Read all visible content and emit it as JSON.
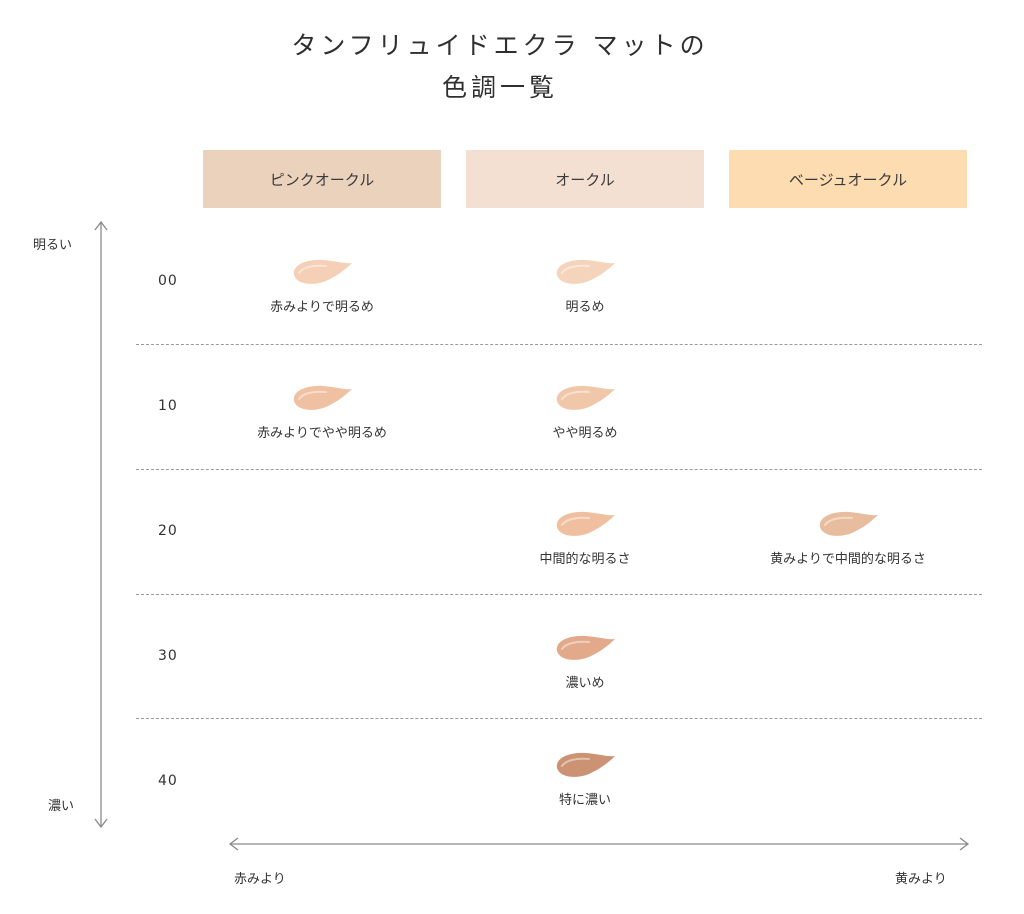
{
  "title": {
    "line1": "タンフリュイドエクラ マットの",
    "line2": "色調一覧"
  },
  "columns": [
    {
      "id": "pink",
      "label": "ピンクオークル",
      "color": "#ead2bd"
    },
    {
      "id": "ochre",
      "label": "オークル",
      "color": "#f4e0d3"
    },
    {
      "id": "beige",
      "label": "ベージュオークル",
      "color": "#fcdcb0"
    }
  ],
  "vertical_axis": {
    "top_label": "明るい",
    "bottom_label": "濃い"
  },
  "horizontal_axis": {
    "left_label": "赤みより",
    "right_label": "黄みより"
  },
  "rows": [
    {
      "number": "00",
      "cells": {
        "pink": {
          "label": "赤みよりで明るめ",
          "swatch_color": "#f5cfb6"
        },
        "ochre": {
          "label": "明るめ",
          "swatch_color": "#f5d4bc"
        }
      }
    },
    {
      "number": "10",
      "cells": {
        "pink": {
          "label": "赤みよりでやや明るめ",
          "swatch_color": "#f0c0a2"
        },
        "ochre": {
          "label": "やや明るめ",
          "swatch_color": "#f1c7aa"
        }
      }
    },
    {
      "number": "20",
      "cells": {
        "ochre": {
          "label": "中間的な明るさ",
          "swatch_color": "#efbf9f"
        },
        "beige": {
          "label": "黄みよりで中間的な明るさ",
          "swatch_color": "#e8bd9d"
        }
      }
    },
    {
      "number": "30",
      "cells": {
        "ochre": {
          "label": "濃いめ",
          "swatch_color": "#e2a98a"
        }
      }
    },
    {
      "number": "40",
      "cells": {
        "ochre": {
          "label": "特に濃い",
          "swatch_color": "#cc9274"
        }
      }
    }
  ]
}
